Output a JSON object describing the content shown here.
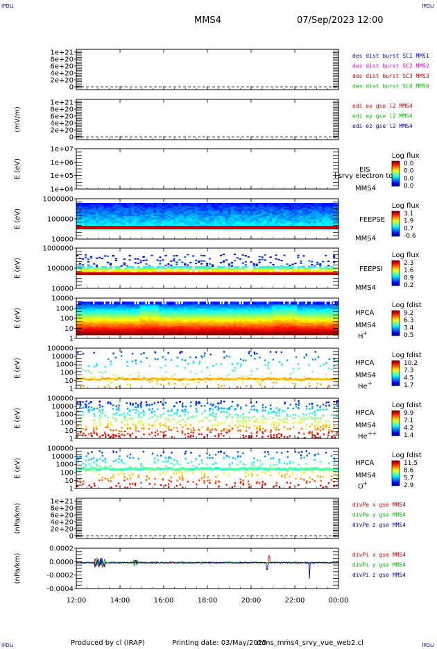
{
  "header": {
    "corner_tl": "IPDLI",
    "corner_tr": "IPDLI",
    "corner_bl": "IPDLI",
    "corner_br": "IPDLI",
    "title": "MMS4",
    "date": "07/Sep/2023 12:00"
  },
  "footer": {
    "produced": "Produced by cl (IRAP)",
    "printing": "Printing date: 03/May/2025",
    "script": "mms_mms4_srvy_vue_web2.cl"
  },
  "colors": {
    "red": "#d40000",
    "green": "#00c000",
    "blue": "#0000c0",
    "magenta": "#d000d0"
  },
  "chart_data": {
    "type": "heatmap",
    "x_tick_labels": [
      "12:00",
      "14:00",
      "16:00",
      "18:00",
      "20:00",
      "22:00",
      "00:00"
    ],
    "x_range_hours": [
      12,
      24
    ],
    "panels": [
      {
        "id": "des-dist",
        "kind": "line",
        "ylabel": "",
        "ytick_labels": [
          "1e+21",
          "8e+20",
          "6e+20",
          "4e+20",
          "2e+20",
          "0"
        ],
        "ylim": [
          0,
          1e+21
        ],
        "legend": [
          {
            "text": "des dist burst SC1 MMS1",
            "color": "#0000c0"
          },
          {
            "text": "des dist burst SC2 MMS2",
            "color": "#d000d0"
          },
          {
            "text": "des dist burst SC3 MMS3",
            "color": "#d40000"
          },
          {
            "text": "des dist burst SC4 MMS4",
            "color": "#00c000"
          }
        ]
      },
      {
        "id": "edi",
        "kind": "line",
        "ylabel": "(mV/m)",
        "ytick_labels": [
          "1e+21",
          "8e+20",
          "6e+20",
          "4e+20",
          "2e+20",
          "0"
        ],
        "ylim": [
          0,
          1e+21
        ],
        "legend": [
          {
            "text": "edi ex gse l2 MMS4",
            "color": "#d40000"
          },
          {
            "text": "edi ey gse l2 MMS4",
            "color": "#00c000"
          },
          {
            "text": "edi ez gse l2 MMS4",
            "color": "#0000c0"
          }
        ]
      },
      {
        "id": "eis",
        "kind": "spectrogram",
        "ylabel": "E (eV)",
        "ytick_labels": [
          "1e+07",
          "1e+06",
          "1e+05",
          "1e+04"
        ],
        "right_labels": [
          "EIS",
          "MMS4"
        ],
        "overlay_text": "l srvy electron to",
        "colorbar_title": "Log flux",
        "colorbar_ticks": [
          "0.0",
          "0.0",
          "0.0",
          "0.0"
        ],
        "empty": true
      },
      {
        "id": "feeps-e",
        "kind": "spectrogram",
        "ylabel": "E (eV)",
        "ytick_labels": [
          "1000000",
          "100000",
          "10000"
        ],
        "right_labels": [
          "FEEPSE",
          "MMS4"
        ],
        "colorbar_title": "Log flux",
        "colorbar_ticks": [
          "3.1",
          "1.9",
          "0.7",
          "-0.6"
        ]
      },
      {
        "id": "feeps-i",
        "kind": "spectrogram",
        "ylabel": "E (eV)",
        "ytick_labels": [
          "1000000",
          "100000",
          "10000"
        ],
        "right_labels": [
          "FEEPSI",
          "MMS4"
        ],
        "colorbar_title": "Log flux",
        "colorbar_ticks": [
          "2.3",
          "1.6",
          "0.9",
          "0.2"
        ]
      },
      {
        "id": "hpca-h",
        "kind": "spectrogram",
        "ylabel": "E (eV)",
        "ytick_labels": [
          "10000",
          "1000",
          "100",
          "10",
          "1"
        ],
        "right_labels": [
          "HPCA",
          "MMS4"
        ],
        "species": "H",
        "species_sup": "+",
        "colorbar_title": "Log fdist",
        "colorbar_ticks": [
          "9.2",
          "6.3",
          "3.4",
          "0.5"
        ]
      },
      {
        "id": "hpca-he",
        "kind": "spectrogram",
        "ylabel": "E (eV)",
        "ytick_labels": [
          "100000",
          "10000",
          "1000",
          "100",
          "10",
          "1"
        ],
        "right_labels": [
          "HPCA",
          "MMS4"
        ],
        "species": "He",
        "species_sup": "+",
        "colorbar_title": "Log fdist",
        "colorbar_ticks": [
          "10.2",
          "7.3",
          "4.5",
          "1.7"
        ]
      },
      {
        "id": "hpca-he2",
        "kind": "spectrogram",
        "ylabel": "E (eV)",
        "ytick_labels": [
          "100000",
          "10000",
          "1000",
          "100",
          "10",
          "1"
        ],
        "right_labels": [
          "HPCA",
          "MMS4"
        ],
        "species": "He",
        "species_sup": "++",
        "colorbar_title": "Log fdist",
        "colorbar_ticks": [
          "9.9",
          "7.1",
          "4.2",
          "1.4"
        ]
      },
      {
        "id": "hpca-o",
        "kind": "spectrogram",
        "ylabel": "E (eV)",
        "ytick_labels": [
          "100000",
          "10000",
          "1000",
          "100",
          "10",
          "1"
        ],
        "right_labels": [
          "HPCA",
          "MMS4"
        ],
        "species": "O",
        "species_sup": "+",
        "colorbar_title": "Log fdist",
        "colorbar_ticks": [
          "11.5",
          "8.6",
          "5.7",
          "2.9"
        ]
      },
      {
        "id": "divpe",
        "kind": "line",
        "ylabel": "(nPa/km)",
        "ytick_labels": [
          "1e+21",
          "8e+20",
          "6e+20",
          "4e+20",
          "2e+20",
          "0"
        ],
        "ylim": [
          0,
          1e+21
        ],
        "legend": [
          {
            "text": "divPe x gse MMS4",
            "color": "#d40000"
          },
          {
            "text": "divPe y gse MMS4",
            "color": "#00c000"
          },
          {
            "text": "divPe z gse MMS4",
            "color": "#0000c0"
          }
        ]
      },
      {
        "id": "divpi",
        "kind": "timeseries",
        "ylabel": "(nPa/km)",
        "ytick_labels": [
          "0.0002",
          "0.0000",
          "-0.0002",
          "-0.0004"
        ],
        "ylim": [
          -0.00045,
          0.00025
        ],
        "legend": [
          {
            "text": "divPi x gse MMS4",
            "color": "#d40000"
          },
          {
            "text": "divPi y gse MMS4",
            "color": "#00c000"
          },
          {
            "text": "divPi z gse MMS4",
            "color": "#0000c0"
          }
        ]
      }
    ]
  }
}
